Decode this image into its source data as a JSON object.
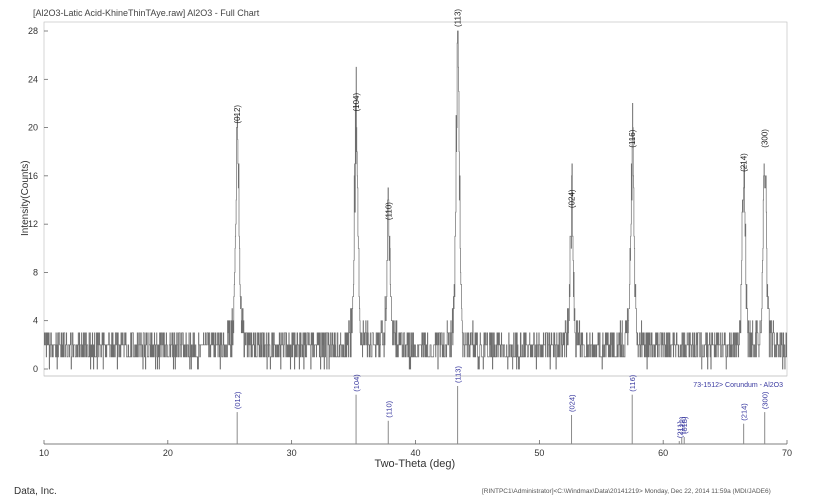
{
  "title": "[Al2O3-Latic Acid-KhineThinTAye.raw] Al2O3 - Full Chart",
  "footer": {
    "left": "Data, Inc.",
    "right": "[RINTPC1\\Administrator]<C:\\Windmax\\Data\\20141219> Monday, Dec 22, 2014 11:59a (MDI/JADE6)"
  },
  "colors": {
    "pattern": "#555555",
    "reference_line": "#8a8a8a",
    "axis": "#555555",
    "reference_label": "#3a3aa0"
  },
  "chart_data": {
    "type": "line",
    "title": "[Al2O3-Latic Acid-KhineThinTAye.raw] Al2O3 - Full Chart",
    "xlabel": "Two-Theta (deg)",
    "ylabel": "Intensity(Counts)",
    "xlim": [
      10,
      70
    ],
    "ylim": [
      0,
      28
    ],
    "xticks": [
      10,
      20,
      30,
      40,
      50,
      60,
      70
    ],
    "yticks": [
      0,
      4,
      8,
      12,
      16,
      20,
      24,
      28
    ],
    "background_counts": 2,
    "peaks": [
      {
        "x": 25.6,
        "y": 20,
        "label": "(012)"
      },
      {
        "x": 35.2,
        "y": 21,
        "label": "(104)"
      },
      {
        "x": 37.8,
        "y": 12,
        "label": "(110)"
      },
      {
        "x": 43.4,
        "y": 28,
        "label": "(113)"
      },
      {
        "x": 52.6,
        "y": 13,
        "label": "(024)"
      },
      {
        "x": 57.5,
        "y": 18,
        "label": "(116)"
      },
      {
        "x": 66.5,
        "y": 16,
        "label": "(214)"
      },
      {
        "x": 68.2,
        "y": 18,
        "label": "(300)"
      }
    ],
    "reference": {
      "name": "73-1512> Corundum - Al2O3",
      "lines": [
        {
          "x": 25.6,
          "rel": 0.55,
          "label": "(012)"
        },
        {
          "x": 35.2,
          "rel": 0.85,
          "label": "(104)"
        },
        {
          "x": 37.8,
          "rel": 0.4,
          "label": "(110)"
        },
        {
          "x": 43.4,
          "rel": 1.0,
          "label": "(113)"
        },
        {
          "x": 52.6,
          "rel": 0.5,
          "label": "(024)"
        },
        {
          "x": 57.5,
          "rel": 0.85,
          "label": "(116)"
        },
        {
          "x": 61.3,
          "rel": 0.05,
          "label": "(211)"
        },
        {
          "x": 61.5,
          "rel": 0.12,
          "label": "(122)"
        },
        {
          "x": 61.7,
          "rel": 0.12,
          "label": "(018)"
        },
        {
          "x": 66.5,
          "rel": 0.35,
          "label": "(214)"
        },
        {
          "x": 68.2,
          "rel": 0.55,
          "label": "(300)"
        }
      ]
    }
  }
}
